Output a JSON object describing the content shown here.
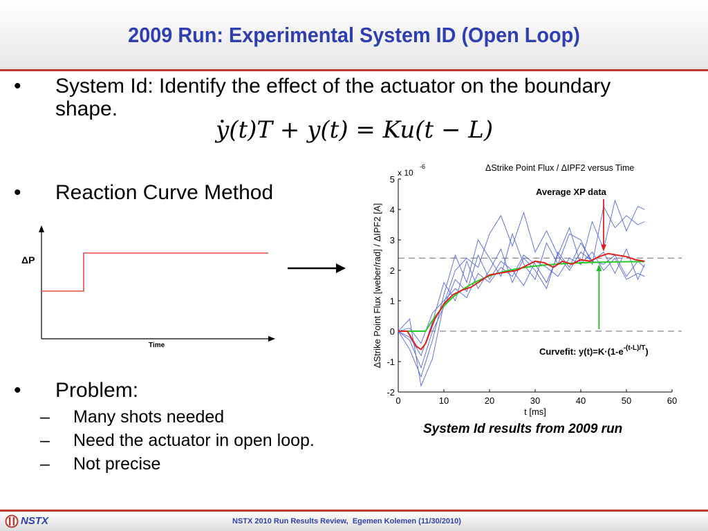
{
  "slide": {
    "title": "2009 Run: Experimental System ID (Open Loop)",
    "bullets": [
      {
        "marker": "•",
        "lines": [
          "System Id: Identify the effect of the actuator on the boundary",
          "shape."
        ]
      },
      {
        "marker": "•",
        "text": "Reaction Curve Method"
      },
      {
        "marker": "•",
        "text": "Problem:"
      }
    ],
    "sub_bullets": [
      {
        "marker": "–",
        "text": "Many shots needed"
      },
      {
        "marker": "–",
        "text": "Need the actuator in open loop."
      },
      {
        "marker": "–",
        "text": "Not precise"
      }
    ],
    "equation": {
      "lhs_1": "y(t)T",
      "plus": " + ",
      "lhs_2": "y(t)",
      "eq": " = ",
      "rhs": "Ku(t − L)"
    },
    "step_diagram": {
      "y_label": "ΔP",
      "x_label": "Time",
      "step_color": "#e74c3c"
    },
    "caption": "System Id results from 2009 run"
  },
  "footer": {
    "name": "NSTX",
    "text": "NSTX 2010 Run Results Review,  Egemen Kolemen (11/30/2010)"
  },
  "chart_data": {
    "type": "line",
    "title": "ΔStrike Point Flux / ΔIPF2 versus Time",
    "xlabel": "t [ms]",
    "ylabel": "ΔStrike Point Flux [weber/rad] / ΔIPF2 [A]",
    "y_scale_label": "x 10",
    "y_scale_exponent": "-6",
    "xlim": [
      0,
      60
    ],
    "ylim": [
      -2,
      5
    ],
    "xticks": [
      "0",
      "10",
      "20",
      "30",
      "40",
      "50",
      "60"
    ],
    "yticks": [
      "-2",
      "-1",
      "0",
      "1",
      "2",
      "3",
      "4",
      "5"
    ],
    "dashed_levels": [
      0,
      2.4
    ],
    "annotations": {
      "average": "Average XP data",
      "curvefit_prefix": "Curvefit: y(t)=K",
      "curvefit_mid": "(1-e",
      "curvefit_exp": "-(t-L)/T",
      "curvefit_suffix": ")"
    },
    "colors": {
      "shots": "#5566dd",
      "average": "#e0201c",
      "fit": "#22cc22",
      "dashed": "#888888",
      "annotation_red": "#dd2020",
      "annotation_green": "#22bb22"
    },
    "x": [
      0,
      2.5,
      5,
      7.5,
      10,
      12.5,
      15,
      17.5,
      20,
      22.5,
      25,
      27.5,
      30,
      32.5,
      35,
      37.5,
      40,
      42.5,
      45,
      47.5,
      50,
      52.5,
      54
    ],
    "shots": [
      {
        "values": [
          0,
          0.4,
          -1.8,
          -0.9,
          0.9,
          2.0,
          2.4,
          2.1,
          3.2,
          3.8,
          2.8,
          3.9,
          2.6,
          3.3,
          2.5,
          3.4,
          2.2,
          3.6,
          2.7,
          4.3,
          3.3,
          4.1,
          4.0
        ]
      },
      {
        "values": [
          0,
          -0.6,
          -1.5,
          -0.3,
          1.2,
          2.5,
          1.6,
          3.0,
          2.4,
          1.8,
          3.2,
          2.2,
          1.7,
          2.9,
          2.2,
          3.2,
          3.0,
          2.2,
          4.1,
          3.4,
          3.8,
          3.5,
          3.6
        ]
      },
      {
        "values": [
          0,
          -0.2,
          -0.8,
          0.3,
          1.6,
          1.0,
          2.3,
          1.4,
          2.0,
          2.7,
          1.6,
          2.4,
          2.0,
          1.4,
          2.6,
          2.1,
          2.9,
          2.3,
          2.6,
          1.9,
          2.7,
          1.7,
          2.2
        ]
      },
      {
        "values": [
          0,
          0.1,
          -0.4,
          0.6,
          1.0,
          1.4,
          1.1,
          1.9,
          1.6,
          2.1,
          1.8,
          2.5,
          2.2,
          1.6,
          2.5,
          2.0,
          2.6,
          2.3,
          2.2,
          2.5,
          1.8,
          2.3,
          2.1
        ]
      },
      {
        "values": [
          0,
          -0.3,
          -1.2,
          0.0,
          0.8,
          1.7,
          1.3,
          2.5,
          1.7,
          2.3,
          2.0,
          1.5,
          2.3,
          2.1,
          1.8,
          2.4,
          2.2,
          2.6,
          2.0,
          2.4,
          1.7,
          1.9,
          1.8
        ]
      }
    ],
    "average": {
      "name": "Average XP data",
      "x": [
        0,
        2,
        4,
        5,
        6,
        7,
        8,
        10,
        12,
        14,
        16,
        18,
        20,
        22,
        24,
        26,
        28,
        30,
        32,
        34,
        36,
        38,
        40,
        42,
        44,
        46,
        48,
        50,
        52,
        54
      ],
      "values": [
        0,
        0,
        -0.5,
        -0.6,
        -0.4,
        0.0,
        0.4,
        0.9,
        1.2,
        1.35,
        1.45,
        1.65,
        1.85,
        1.9,
        1.95,
        2.0,
        2.15,
        2.3,
        2.25,
        2.1,
        2.3,
        2.2,
        2.35,
        2.3,
        2.45,
        2.55,
        2.5,
        2.45,
        2.35,
        2.3
      ]
    },
    "curvefit": {
      "K": 2.3,
      "L": 6,
      "T": 9,
      "x_end": 54
    }
  }
}
